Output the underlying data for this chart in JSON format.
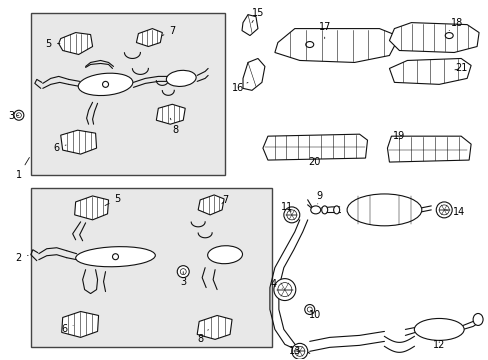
{
  "bg_color": "#ffffff",
  "box_fill": "#e8e8e8",
  "box_edge": "#444444",
  "line_color": "#111111",
  "label_color": "#000000",
  "lw": 0.8,
  "fs": 7.0
}
